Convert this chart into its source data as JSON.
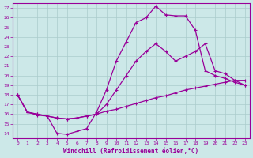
{
  "xlabel": "Windchill (Refroidissement éolien,°C)",
  "bg_color": "#cce8e8",
  "line_color": "#990099",
  "xlim": [
    -0.5,
    23.5
  ],
  "ylim": [
    13.5,
    27.5
  ],
  "xticks": [
    0,
    1,
    2,
    3,
    4,
    5,
    6,
    7,
    8,
    9,
    10,
    11,
    12,
    13,
    14,
    15,
    16,
    17,
    18,
    19,
    20,
    21,
    22,
    23
  ],
  "yticks": [
    14,
    15,
    16,
    17,
    18,
    19,
    20,
    21,
    22,
    23,
    24,
    25,
    26,
    27
  ],
  "line1_x": [
    0,
    1,
    2,
    3,
    4,
    5,
    6,
    7,
    8,
    9,
    10,
    11,
    12,
    13,
    14,
    15,
    16,
    17,
    18,
    19,
    20,
    21,
    22,
    23
  ],
  "line1_y": [
    18.0,
    16.2,
    16.0,
    15.8,
    14.0,
    13.9,
    14.2,
    14.5,
    16.2,
    18.5,
    21.5,
    23.5,
    25.5,
    26.0,
    27.2,
    26.3,
    26.2,
    26.2,
    24.7,
    20.5,
    20.0,
    19.7,
    19.3,
    19.0
  ],
  "line2_x": [
    0,
    1,
    2,
    3,
    4,
    5,
    6,
    7,
    8,
    9,
    10,
    11,
    12,
    13,
    14,
    15,
    16,
    17,
    18,
    19,
    20,
    21,
    22,
    23
  ],
  "line2_y": [
    18.0,
    16.2,
    15.9,
    15.8,
    15.6,
    15.5,
    15.6,
    15.8,
    16.0,
    16.3,
    16.5,
    16.8,
    17.1,
    17.4,
    17.7,
    17.9,
    18.2,
    18.5,
    18.7,
    18.9,
    19.1,
    19.3,
    19.5,
    19.5
  ],
  "line3_x": [
    0,
    1,
    2,
    3,
    4,
    5,
    6,
    7,
    8,
    9,
    10,
    11,
    12,
    13,
    14,
    15,
    16,
    17,
    18,
    19,
    20,
    21,
    22,
    23
  ],
  "line3_y": [
    18.0,
    16.2,
    16.0,
    15.8,
    15.6,
    15.5,
    15.6,
    15.8,
    16.0,
    17.0,
    18.5,
    20.0,
    21.5,
    22.5,
    23.3,
    22.5,
    21.5,
    22.0,
    22.5,
    23.3,
    20.5,
    20.2,
    19.5,
    19.0
  ]
}
